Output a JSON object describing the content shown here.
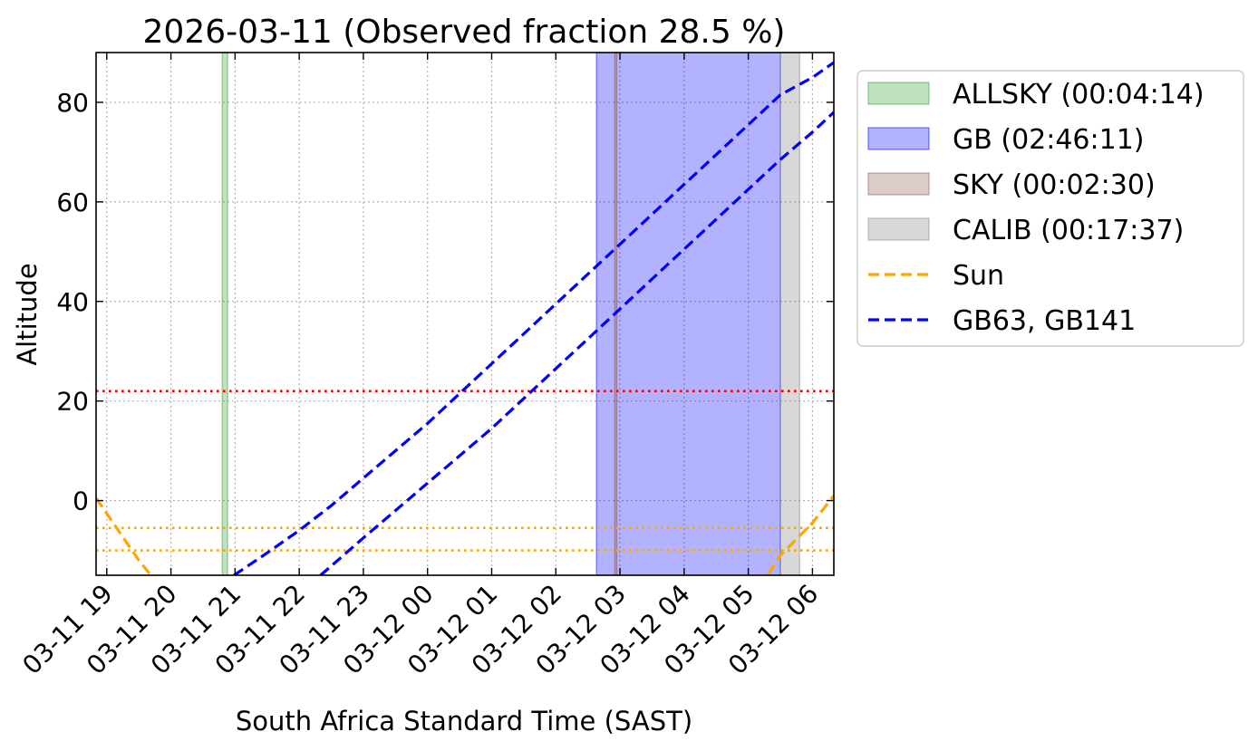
{
  "chart_data": {
    "type": "line",
    "title": "2026-03-11 (Observed fraction 28.5 %)",
    "xlabel": "South Africa Standard Time (SAST)",
    "ylabel": "Altitude",
    "xlim": [
      "2026-03-11 18:50",
      "2026-03-12 06:20"
    ],
    "ylim": [
      -15,
      90
    ],
    "grid": true,
    "legend_position": "outside-right-top",
    "x_ticks": [
      "03-11 19",
      "03-11 20",
      "03-11 21",
      "03-11 22",
      "03-11 23",
      "03-12 00",
      "03-12 01",
      "03-12 02",
      "03-12 03",
      "03-12 04",
      "03-12 05",
      "03-12 06"
    ],
    "y_ticks": [
      0,
      20,
      40,
      60,
      80
    ],
    "spans": [
      {
        "name": "ALLSKY (00:04:14)",
        "color": "#2ca02c",
        "intervals": [
          [
            "2026-03-11 20:48",
            "2026-03-11 20:53"
          ]
        ]
      },
      {
        "name": "GB (02:46:11)",
        "color": "#0000ff",
        "intervals": [
          [
            "2026-03-12 02:38",
            "2026-03-12 05:30"
          ]
        ]
      },
      {
        "name": "SKY (00:02:30)",
        "color": "#8c564b",
        "intervals": [
          [
            "2026-03-12 02:55",
            "2026-03-12 02:57"
          ]
        ]
      },
      {
        "name": "CALIB (00:17:37)",
        "color": "#7f7f7f",
        "intervals": [
          [
            "2026-03-12 05:30",
            "2026-03-12 05:48"
          ]
        ]
      }
    ],
    "series": [
      {
        "name": "Sun",
        "color": "#ffa500",
        "style": "dashed",
        "x": [
          "2026-03-11 18:50",
          "2026-03-11 19:30",
          "2026-03-11 19:45",
          "2026-03-12 05:15",
          "2026-03-12 05:30",
          "2026-03-12 06:00",
          "2026-03-12 06:20"
        ],
        "y": [
          0.5,
          -12,
          -16,
          -16,
          -11,
          -4.5,
          1
        ]
      },
      {
        "name": "GB63, GB141",
        "color": "#0000ff",
        "style": "dashed",
        "lines": [
          {
            "x": [
              "2026-03-11 20:59",
              "2026-03-11 21:30",
              "2026-03-11 22:00",
              "2026-03-11 22:30",
              "2026-03-11 23:00",
              "2026-03-11 23:30",
              "2026-03-12 00:00",
              "2026-03-12 00:30",
              "2026-03-12 01:00",
              "2026-03-12 01:30",
              "2026-03-12 02:00",
              "2026-03-12 02:30",
              "2026-03-12 03:00",
              "2026-03-12 03:30",
              "2026-03-12 04:00",
              "2026-03-12 04:30",
              "2026-03-12 05:00",
              "2026-03-12 05:30",
              "2026-03-12 06:00",
              "2026-03-12 06:20"
            ],
            "y": [
              -15,
              -10.5,
              -6,
              -1,
              4.5,
              10,
              15.5,
              21.5,
              27.5,
              33.5,
              39.5,
              45.5,
              51.5,
              57.5,
              63.5,
              69.5,
              75.5,
              81.5,
              85,
              88
            ]
          },
          {
            "x": [
              "2026-03-11 22:20",
              "2026-03-11 23:00",
              "2026-03-11 23:30",
              "2026-03-12 00:00",
              "2026-03-12 00:30",
              "2026-03-12 01:00",
              "2026-03-12 01:30",
              "2026-03-12 02:00",
              "2026-03-12 02:30",
              "2026-03-12 03:00",
              "2026-03-12 03:30",
              "2026-03-12 04:00",
              "2026-03-12 04:30",
              "2026-03-12 05:00",
              "2026-03-12 05:30",
              "2026-03-12 06:00",
              "2026-03-12 06:20"
            ],
            "y": [
              -15,
              -7.5,
              -2,
              3.5,
              9,
              14.5,
              20.5,
              26.5,
              32.5,
              38.5,
              44.5,
              50.5,
              56.5,
              62.5,
              68.5,
              74,
              78
            ]
          }
        ]
      }
    ],
    "hlines": [
      {
        "y": 22,
        "color": "#ff0000",
        "style": "dotted"
      },
      {
        "y": -5.5,
        "color": "#ffa500",
        "style": "dotted"
      },
      {
        "y": -10,
        "color": "#ffa500",
        "style": "dotted"
      }
    ]
  }
}
